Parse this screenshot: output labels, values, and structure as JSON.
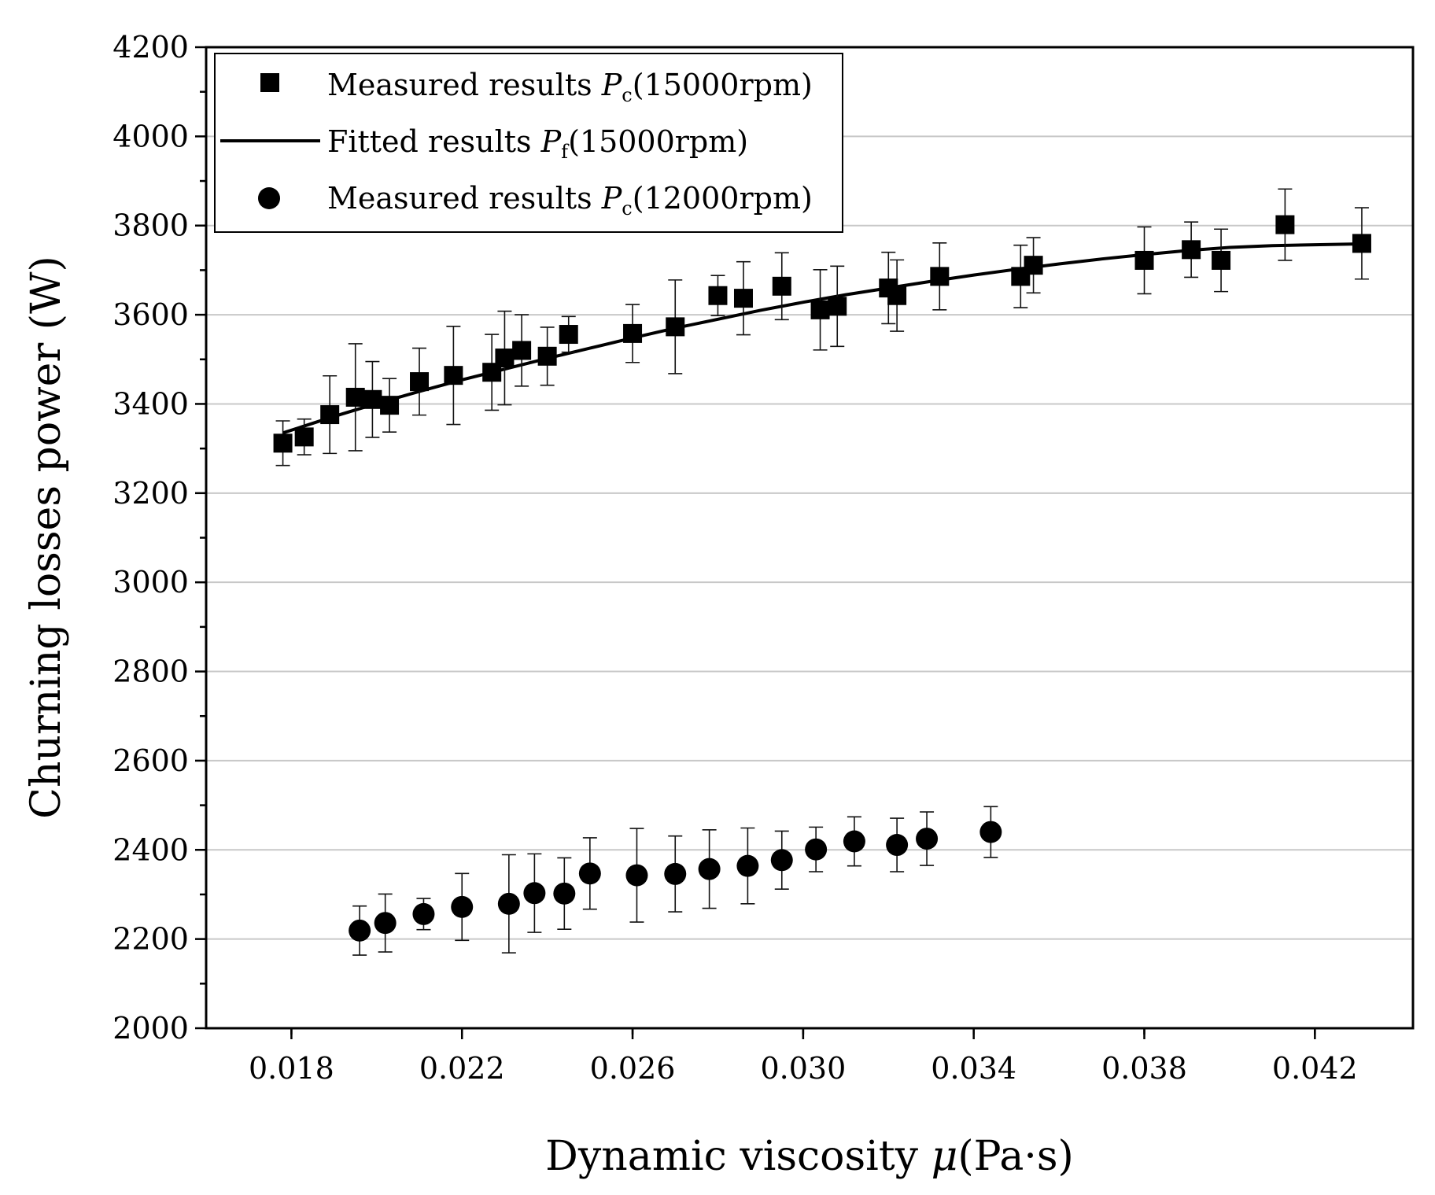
{
  "chart_data": {
    "type": "scatter",
    "title": "",
    "xlabel_prefix": "Dynamic viscosity ",
    "xlabel_symbol": "μ",
    "xlabel_suffix": "(Pa·s)",
    "ylabel": "Churning losses power (W)",
    "xlim": [
      0.016,
      0.0443
    ],
    "ylim": [
      2000,
      4200
    ],
    "xticks": [
      0.018,
      0.022,
      0.026,
      0.03,
      0.034,
      0.038,
      0.042
    ],
    "xtick_labels": [
      "0.018",
      "0.022",
      "0.026",
      "0.030",
      "0.034",
      "0.038",
      "0.042"
    ],
    "yticks": [
      2000,
      2200,
      2400,
      2600,
      2800,
      3000,
      3200,
      3400,
      3600,
      3800,
      4000,
      4200
    ],
    "ytick_labels": [
      "2000",
      "2200",
      "2400",
      "2600",
      "2800",
      "3000",
      "3200",
      "3400",
      "3600",
      "3800",
      "4000",
      "4200"
    ],
    "grid": "horizontal",
    "legend_position": "top-left",
    "legend": [
      {
        "marker": "square",
        "pre": "Measured results ",
        "sym": "P",
        "sub": "c",
        "post": "(15000rpm)"
      },
      {
        "marker": "line",
        "pre": "Fitted results ",
        "sym": "P",
        "sub": "f",
        "post": "(15000rpm)"
      },
      {
        "marker": "circle",
        "pre": "Measured results ",
        "sym": "P",
        "sub": "c",
        "post": "(12000rpm)"
      }
    ],
    "series": [
      {
        "name": "Measured results Pc(15000rpm)",
        "marker": "square",
        "x": [
          0.0178,
          0.0183,
          0.0189,
          0.0195,
          0.0199,
          0.0203,
          0.021,
          0.0218,
          0.0227,
          0.023,
          0.0234,
          0.024,
          0.0245,
          0.026,
          0.027,
          0.028,
          0.0286,
          0.0295,
          0.0304,
          0.0308,
          0.032,
          0.0322,
          0.0332,
          0.0351,
          0.0354,
          0.038,
          0.0391,
          0.0398,
          0.0413,
          0.0431
        ],
        "y": [
          3312,
          3326,
          3376,
          3415,
          3410,
          3397,
          3450,
          3464,
          3471,
          3503,
          3520,
          3507,
          3556,
          3558,
          3573,
          3643,
          3637,
          3664,
          3611,
          3619,
          3660,
          3643,
          3686,
          3686,
          3711,
          3722,
          3746,
          3722,
          3802,
          3760
        ],
        "err": [
          50,
          40,
          87,
          120,
          85,
          60,
          75,
          110,
          85,
          105,
          80,
          65,
          40,
          65,
          105,
          45,
          82,
          75,
          90,
          90,
          80,
          80,
          75,
          70,
          62,
          75,
          62,
          70,
          80,
          80
        ]
      },
      {
        "name": "Fitted results Pf(15000rpm)",
        "type": "line",
        "x": [
          0.0178,
          0.019,
          0.02,
          0.021,
          0.022,
          0.023,
          0.024,
          0.025,
          0.026,
          0.027,
          0.028,
          0.029,
          0.03,
          0.031,
          0.032,
          0.033,
          0.034,
          0.035,
          0.036,
          0.037,
          0.038,
          0.039,
          0.04,
          0.041,
          0.042,
          0.0431
        ],
        "y": [
          3335,
          3372,
          3401,
          3428,
          3454,
          3478,
          3502,
          3525,
          3548,
          3570,
          3590,
          3610,
          3628,
          3645,
          3660,
          3675,
          3689,
          3702,
          3714,
          3725,
          3735,
          3744,
          3751,
          3755,
          3757,
          3759
        ]
      },
      {
        "name": "Measured results Pc(12000rpm)",
        "marker": "circle",
        "x": [
          0.0196,
          0.0202,
          0.0211,
          0.022,
          0.0231,
          0.0237,
          0.0244,
          0.025,
          0.0261,
          0.027,
          0.0278,
          0.0287,
          0.0295,
          0.0303,
          0.0312,
          0.0322,
          0.0329,
          0.0344
        ],
        "y": [
          2219,
          2236,
          2256,
          2272,
          2279,
          2303,
          2302,
          2347,
          2343,
          2346,
          2357,
          2364,
          2377,
          2401,
          2419,
          2411,
          2425,
          2440
        ]
      }
    ],
    "err_12000": [
      55,
      65,
      35,
      75,
      110,
      88,
      80,
      80,
      105,
      85,
      88,
      85,
      65,
      50,
      55,
      60,
      60,
      57
    ]
  }
}
